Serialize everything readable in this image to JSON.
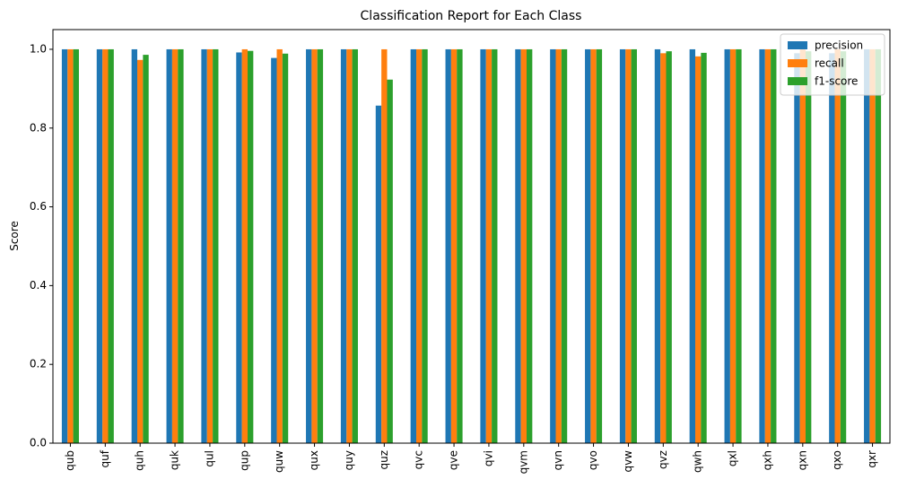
{
  "chart_data": {
    "type": "bar",
    "title": "Classification Report for Each Class",
    "xlabel": "",
    "ylabel": "Score",
    "ylim": [
      0,
      1.05
    ],
    "yticks": [
      "0.0",
      "0.2",
      "0.4",
      "0.6",
      "0.8",
      "1.0"
    ],
    "grid": false,
    "legend_position": "top-right",
    "categories": [
      "qub",
      "quf",
      "quh",
      "quk",
      "qul",
      "qup",
      "quw",
      "qux",
      "quy",
      "quz",
      "qvc",
      "qve",
      "qvi",
      "qvm",
      "qvn",
      "qvo",
      "qvw",
      "qvz",
      "qwh",
      "qxl",
      "qxh",
      "qxn",
      "qxo",
      "qxr"
    ],
    "series": [
      {
        "name": "precision",
        "color": "#1f77b4",
        "values": [
          1.0,
          1.0,
          1.0,
          1.0,
          1.0,
          0.992,
          0.978,
          1.0,
          1.0,
          0.857,
          1.0,
          1.0,
          1.0,
          1.0,
          1.0,
          1.0,
          1.0,
          1.0,
          1.0,
          1.0,
          1.0,
          0.99,
          0.99,
          1.0
        ]
      },
      {
        "name": "recall",
        "color": "#ff7f0e",
        "values": [
          1.0,
          1.0,
          0.973,
          1.0,
          1.0,
          1.0,
          1.0,
          1.0,
          1.0,
          1.0,
          1.0,
          1.0,
          1.0,
          1.0,
          1.0,
          1.0,
          1.0,
          0.99,
          0.982,
          1.0,
          1.0,
          1.0,
          1.0,
          1.0
        ]
      },
      {
        "name": "f1-score",
        "color": "#2ca02c",
        "values": [
          1.0,
          1.0,
          0.986,
          1.0,
          1.0,
          0.996,
          0.989,
          1.0,
          1.0,
          0.923,
          1.0,
          1.0,
          1.0,
          1.0,
          1.0,
          1.0,
          1.0,
          0.995,
          0.991,
          1.0,
          1.0,
          0.995,
          0.995,
          1.0
        ]
      }
    ]
  }
}
